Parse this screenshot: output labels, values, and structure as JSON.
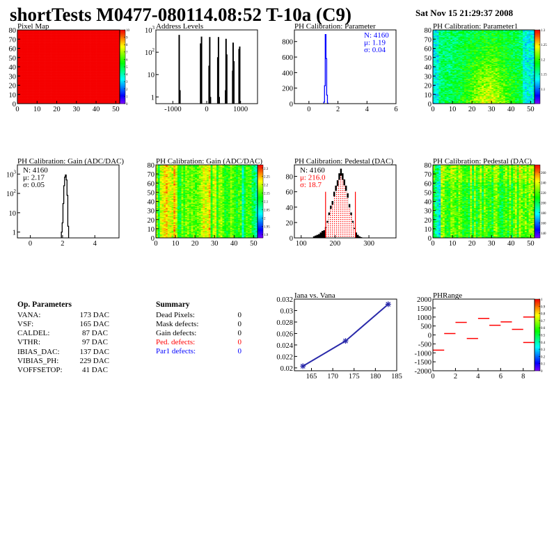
{
  "header": {
    "title": "shortTests M0477-080114.08:52 T-10a (C9)",
    "date": "Sat Nov 15 21:29:37 2008"
  },
  "op_parameters": {
    "heading": "Op. Parameters",
    "rows": [
      {
        "label": "VANA:",
        "value": "173 DAC"
      },
      {
        "label": "VSF:",
        "value": "165 DAC"
      },
      {
        "label": "CALDEL:",
        "value": "87 DAC"
      },
      {
        "label": "VTHR:",
        "value": "97 DAC"
      },
      {
        "label": "IBIAS_DAC:",
        "value": "137 DAC"
      },
      {
        "label": "VIBIAS_PH:",
        "value": "229 DAC"
      },
      {
        "label": "VOFFSETOP:",
        "value": "41 DAC"
      }
    ]
  },
  "summary": {
    "heading": "Summary",
    "rows": [
      {
        "label": "Dead Pixels:",
        "value": "0",
        "color": "#000000"
      },
      {
        "label": "Mask defects:",
        "value": "0",
        "color": "#000000"
      },
      {
        "label": "Gain defects:",
        "value": "0",
        "color": "#000000"
      },
      {
        "label": "Ped. defects:",
        "value": "0",
        "color": "#ff0000"
      },
      {
        "label": "Par1 defects:",
        "value": "0",
        "color": "#0000ff"
      }
    ]
  },
  "chart_data": [
    {
      "type": "heatmap",
      "title": "Pixel Map",
      "xlim": [
        0,
        52
      ],
      "ylim": [
        0,
        80
      ],
      "zlim": [
        0,
        10
      ],
      "uniform_value": 10,
      "xticks": [
        0,
        10,
        20,
        30,
        40,
        50
      ],
      "yticks": [
        0,
        10,
        20,
        30,
        40,
        50,
        60,
        70,
        80
      ],
      "zticks": [
        0,
        1,
        2,
        3,
        4,
        5,
        6,
        7,
        8,
        9,
        10
      ]
    },
    {
      "type": "bar",
      "title": "Address Levels",
      "xlim": [
        -1500,
        1500
      ],
      "ylim": [
        0.5,
        1000
      ],
      "ylog": true,
      "xticks": [
        -1000,
        0,
        1000
      ],
      "yticks": [
        1,
        10,
        100,
        1000
      ],
      "x": [
        -812,
        -790,
        -180,
        -153,
        70,
        90,
        111,
        327,
        348,
        369,
        557,
        571,
        592,
        767,
        780,
        801,
        955,
        975
      ],
      "values": [
        600,
        2,
        250,
        500,
        25,
        480,
        1,
        60,
        480,
        1,
        2,
        400,
        80,
        15,
        270,
        40,
        140,
        180
      ]
    },
    {
      "type": "bar",
      "title": "PH Calibration: Parameter",
      "xlim": [
        -1,
        6
      ],
      "ylim": [
        0,
        950
      ],
      "xticks": [
        0,
        2,
        4,
        6
      ],
      "yticks": [
        0,
        200,
        400,
        600,
        800
      ],
      "bin_width": 0.05,
      "color": "#0000ff",
      "x": [
        1.05,
        1.1,
        1.15,
        1.2,
        1.25,
        1.3
      ],
      "values": [
        20,
        230,
        890,
        580,
        110,
        5
      ],
      "stats": {
        "n": "N: 4160",
        "mean": "μ: 1.19",
        "sigma": "σ: 0.04",
        "color": "#0000ff"
      }
    },
    {
      "type": "heatmap",
      "title": "PH Calibration: Parameter1",
      "xlim": [
        0,
        52
      ],
      "ylim": [
        0,
        80
      ],
      "zlim": [
        1.05,
        1.3
      ],
      "xticks": [
        0,
        10,
        20,
        30,
        40,
        50
      ],
      "yticks": [
        0,
        10,
        20,
        30,
        40,
        50,
        60,
        70,
        80
      ],
      "zticks": [
        1.1,
        1.15,
        1.2,
        1.25,
        1.3
      ]
    },
    {
      "type": "bar",
      "title": "PH Calibration: Gain (ADC/DAC)",
      "xlim": [
        -0.8,
        5.5
      ],
      "ylim": [
        0.5,
        3000
      ],
      "ylog": true,
      "xticks": [
        0,
        2,
        4
      ],
      "yticks": [
        1,
        10,
        100,
        1000
      ],
      "bin_width": 0.05,
      "color": "#000000",
      "x": [
        1.95,
        2.0,
        2.05,
        2.1,
        2.15,
        2.2,
        2.25,
        2.3,
        2.35
      ],
      "values": [
        1,
        3,
        30,
        250,
        700,
        900,
        500,
        80,
        2
      ],
      "stats": {
        "n": "N: 4160",
        "mean": "μ: 2.17",
        "sigma": "σ: 0.05",
        "color": "#000000"
      }
    },
    {
      "type": "heatmap",
      "title": "PH Calibration: Gain (ADC/DAC)",
      "xlim": [
        0,
        52
      ],
      "ylim": [
        0,
        80
      ],
      "zlim": [
        1.88,
        2.32
      ],
      "xticks": [
        0,
        10,
        20,
        30,
        40,
        50
      ],
      "yticks": [
        0,
        10,
        20,
        30,
        40,
        50,
        60,
        70,
        80
      ],
      "zticks": [
        1.9,
        1.95,
        2,
        2.05,
        2.1,
        2.15,
        2.2,
        2.25,
        2.3
      ]
    },
    {
      "type": "bar",
      "title": "PH Calibration: Pedestal (DAC)",
      "xlim": [
        80,
        380
      ],
      "ylim": [
        0,
        95
      ],
      "xticks": [
        100,
        200,
        300
      ],
      "yticks": [
        0,
        20,
        40,
        60,
        80
      ],
      "bin_width": 5,
      "color": "#000000",
      "x": [
        137.5,
        142.5,
        147.5,
        152.5,
        157.5,
        162.5,
        167.5,
        172.5,
        177.5,
        182.5,
        187.5,
        192.5,
        197.5,
        202.5,
        207.5,
        212.5,
        217.5,
        222.5,
        227.5,
        232.5,
        237.5,
        242.5,
        247.5,
        252.5,
        257.5,
        262.5,
        267.5,
        272.5,
        277.5
      ],
      "values": [
        2,
        3,
        4,
        5,
        7,
        9,
        10,
        14,
        22,
        33,
        42,
        48,
        60,
        68,
        75,
        84,
        90,
        84,
        76,
        68,
        58,
        44,
        33,
        22,
        13,
        7,
        4,
        2,
        1
      ],
      "cuts": [
        172,
        260
      ],
      "stats": {
        "n": "N: 4160",
        "mean": "μ: 216.0",
        "sigma": "σ: 18.7",
        "color": "#ff0000"
      }
    },
    {
      "type": "heatmap",
      "title": "PH Calibration: Pedestal (DAC)",
      "xlim": [
        0,
        52
      ],
      "ylim": [
        0,
        80
      ],
      "zlim": [
        130,
        275
      ],
      "xticks": [
        0,
        10,
        20,
        30,
        40,
        50
      ],
      "yticks": [
        0,
        10,
        20,
        30,
        40,
        50,
        60,
        70,
        80
      ],
      "zticks": [
        140,
        160,
        180,
        200,
        220,
        240,
        260
      ]
    },
    {
      "type": "line",
      "title": "Iana vs. Vana",
      "xlim": [
        161,
        185
      ],
      "ylim": [
        0.0195,
        0.032
      ],
      "xticks": [
        165,
        170,
        175,
        180,
        185
      ],
      "yticks": [
        0.02,
        0.022,
        0.024,
        0.026,
        0.028,
        0.03,
        0.032
      ],
      "x": [
        163,
        173,
        183
      ],
      "values": [
        0.0203,
        0.0247,
        0.0311
      ],
      "color": "#2a2aaa"
    },
    {
      "type": "heatmap",
      "title": "PHRange",
      "xlim": [
        0,
        9
      ],
      "ylim": [
        -2000,
        2000
      ],
      "zlim": [
        0,
        1
      ],
      "xticks": [
        0,
        2,
        4,
        6,
        8
      ],
      "yticks": [
        -2000,
        -1500,
        -1000,
        -500,
        0,
        500,
        1000,
        1500,
        2000
      ],
      "zticks": [
        0,
        0.1,
        0.2,
        0.3,
        0.4,
        0.5,
        0.6,
        0.7,
        0.8,
        0.9,
        1
      ],
      "segments": [
        [
          0,
          -850
        ],
        [
          1,
          80
        ],
        [
          2,
          700
        ],
        [
          3,
          -200
        ],
        [
          4,
          920
        ],
        [
          5,
          540
        ],
        [
          6,
          730
        ],
        [
          7,
          310
        ],
        [
          8,
          1000
        ],
        [
          8,
          -420
        ]
      ],
      "color": "#ff0000"
    }
  ]
}
